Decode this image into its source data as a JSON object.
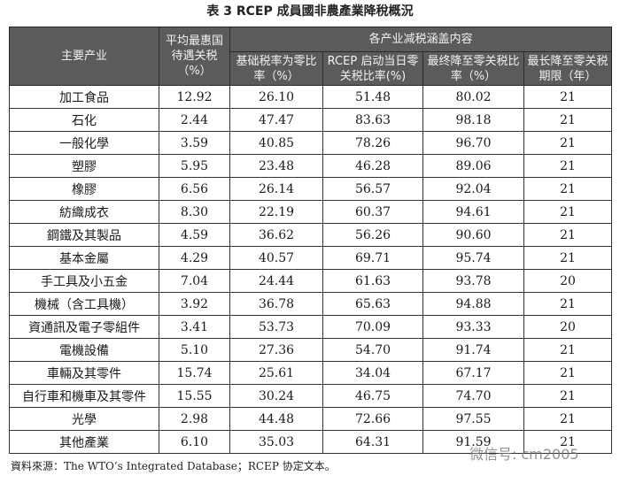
{
  "title": "表 3  RCEP 成員國非農產業降稅概況",
  "headers": {
    "industry": "主要产业",
    "mfn": "平均最惠国待遇关税（%）",
    "group": "各产业减税涵盖内容",
    "sub": [
      "基础税率为零比率（%）",
      "RCEP 启动当日零关税比率(%)",
      "最终降至零关税比率（%）",
      "最长降至零关税期限（年）"
    ]
  },
  "rows": [
    [
      "加工食品",
      "12.92",
      "26.10",
      "51.48",
      "80.02",
      "21"
    ],
    [
      "石化",
      "2.44",
      "47.47",
      "83.63",
      "98.18",
      "21"
    ],
    [
      "一般化學",
      "3.59",
      "40.85",
      "78.26",
      "96.70",
      "21"
    ],
    [
      "塑膠",
      "5.95",
      "23.48",
      "46.28",
      "89.06",
      "21"
    ],
    [
      "橡膠",
      "6.56",
      "26.14",
      "56.57",
      "92.04",
      "21"
    ],
    [
      "紡織成衣",
      "8.30",
      "22.19",
      "60.37",
      "94.61",
      "21"
    ],
    [
      "鋼鐵及其製品",
      "4.59",
      "36.62",
      "56.26",
      "90.60",
      "21"
    ],
    [
      "基本金屬",
      "4.29",
      "40.57",
      "69.71",
      "95.74",
      "21"
    ],
    [
      "手工具及小五金",
      "7.04",
      "24.44",
      "61.63",
      "93.78",
      "20"
    ],
    [
      "機械（含工具機）",
      "3.92",
      "36.78",
      "65.63",
      "94.88",
      "21"
    ],
    [
      "資通訊及電子零組件",
      "3.41",
      "53.73",
      "70.09",
      "93.33",
      "20"
    ],
    [
      "電機設備",
      "5.10",
      "27.36",
      "54.70",
      "91.74",
      "21"
    ],
    [
      "車輛及其零件",
      "15.74",
      "25.61",
      "34.04",
      "67.17",
      "21"
    ],
    [
      "自行車和機車及其零件",
      "15.55",
      "30.24",
      "46.75",
      "74.70",
      "21"
    ],
    [
      "光學",
      "2.98",
      "44.48",
      "72.66",
      "97.55",
      "21"
    ],
    [
      "其他產業",
      "6.10",
      "35.03",
      "64.31",
      "91.59",
      "21"
    ]
  ],
  "footnote": "資料來源：The WTO’s Integrated Database；RCEP 协定文本。",
  "watermark": "微信号: cm2005",
  "colors": {
    "header_bg": "#5a5b5d",
    "header_text": "#f2f2f2"
  }
}
